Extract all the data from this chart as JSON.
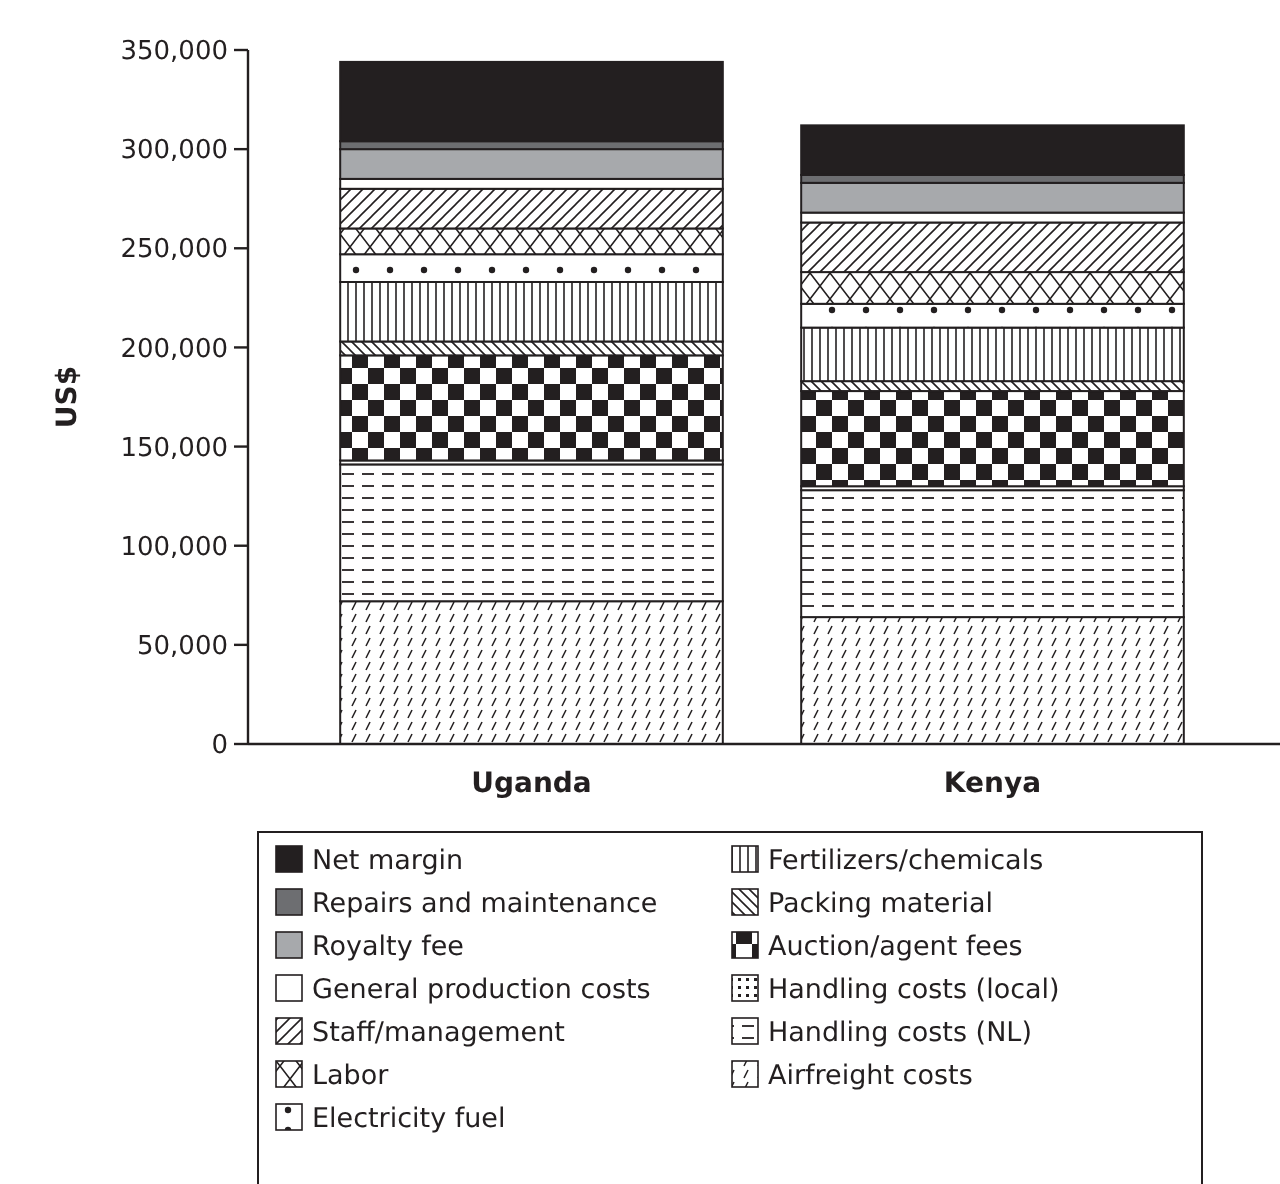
{
  "chart_data": {
    "type": "bar",
    "stacked": true,
    "ylabel": "US$",
    "categories": [
      "Uganda",
      "Kenya"
    ],
    "ylim": [
      0,
      350000
    ],
    "yticks": [
      {
        "value": 0,
        "label": "0"
      },
      {
        "value": 50000,
        "label": "50,000"
      },
      {
        "value": 100000,
        "label": "100,000"
      },
      {
        "value": 150000,
        "label": "150,000"
      },
      {
        "value": 200000,
        "label": "200,000"
      },
      {
        "value": 250000,
        "label": "250,000"
      },
      {
        "value": 300000,
        "label": "300,000"
      },
      {
        "value": 350000,
        "label": "350,000"
      }
    ],
    "legend": "bottom",
    "series": [
      {
        "name": "Airfreight costs",
        "color": "#231f20",
        "values": [
          72000,
          64000
        ]
      },
      {
        "name": "Handling costs (NL)",
        "color": "#231f20",
        "values": [
          69000,
          64000
        ]
      },
      {
        "name": "Handling costs (local)",
        "color": "#231f20",
        "values": [
          2000,
          2000
        ]
      },
      {
        "name": "Auction/agent fees",
        "color": "#231f20",
        "values": [
          53000,
          48000
        ]
      },
      {
        "name": "Packing material",
        "color": "#231f20",
        "values": [
          7000,
          5000
        ]
      },
      {
        "name": "Fertilizers/chemicals",
        "color": "#231f20",
        "values": [
          30000,
          27000
        ]
      },
      {
        "name": "Electricity fuel",
        "color": "#231f20",
        "values": [
          14000,
          12000
        ]
      },
      {
        "name": "Labor",
        "color": "#231f20",
        "values": [
          13000,
          16000
        ]
      },
      {
        "name": "Staff/management",
        "color": "#231f20",
        "values": [
          20000,
          25000
        ]
      },
      {
        "name": "General production costs",
        "color": "#ffffff",
        "values": [
          5000,
          5000
        ]
      },
      {
        "name": "Royalty fee",
        "color": "#a7a9ac",
        "values": [
          15000,
          15000
        ]
      },
      {
        "name": "Repairs and maintenance",
        "color": "#6d6e71",
        "values": [
          4000,
          4000
        ]
      },
      {
        "name": "Net margin",
        "color": "#231f20",
        "values": [
          40000,
          25000
        ]
      }
    ]
  }
}
